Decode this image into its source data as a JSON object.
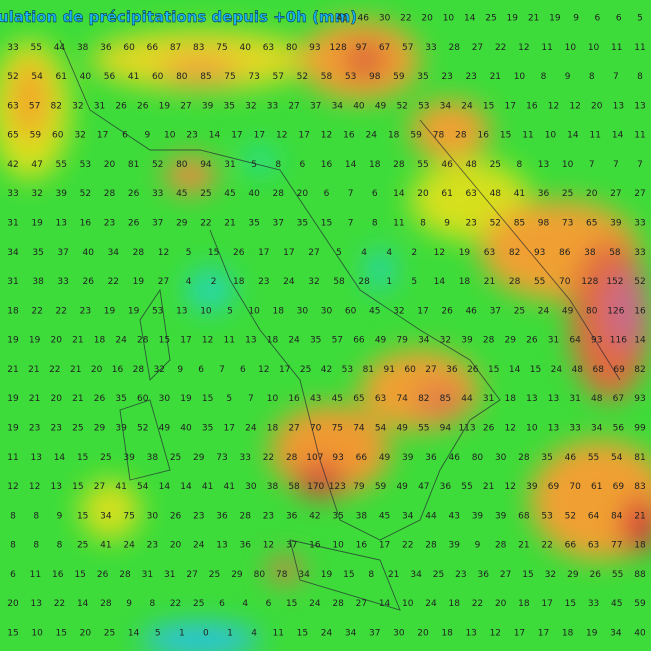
{
  "title": "ulation de précipitations depuis +0h (mm)",
  "grid": [
    [
      41,
      46,
      30,
      22,
      20,
      10,
      14,
      25,
      19,
      21,
      19,
      9,
      6,
      6,
      5
    ],
    [
      33,
      55,
      44,
      38,
      36,
      60,
      66,
      87,
      83,
      75,
      40,
      63,
      80,
      93,
      128,
      97,
      67,
      57,
      33,
      28,
      27,
      22,
      12,
      11,
      10,
      10,
      11,
      11
    ],
    [
      52,
      54,
      61,
      40,
      56,
      41,
      60,
      80,
      85,
      75,
      73,
      57,
      52,
      58,
      53,
      98,
      59,
      35,
      23,
      23,
      21,
      10,
      8,
      9,
      8,
      7,
      8
    ],
    [
      63,
      57,
      82,
      32,
      31,
      26,
      26,
      19,
      27,
      39,
      35,
      32,
      33,
      27,
      37,
      34,
      40,
      49,
      52,
      53,
      34,
      24,
      15,
      17,
      16,
      12,
      12,
      20,
      13,
      13
    ],
    [
      65,
      59,
      60,
      32,
      17,
      6,
      9,
      10,
      23,
      14,
      17,
      17,
      12,
      17,
      12,
      16,
      24,
      18,
      59,
      78,
      28,
      16,
      15,
      11,
      10,
      14,
      11,
      14,
      11
    ],
    [
      42,
      47,
      55,
      53,
      20,
      81,
      52,
      80,
      94,
      31,
      5,
      8,
      6,
      16,
      14,
      18,
      28,
      55,
      46,
      48,
      25,
      8,
      13,
      10,
      7,
      7,
      7
    ],
    [
      33,
      32,
      39,
      52,
      28,
      26,
      33,
      45,
      25,
      45,
      40,
      28,
      20,
      6,
      7,
      6,
      14,
      20,
      61,
      63,
      48,
      41,
      36,
      25,
      20,
      27,
      27
    ],
    [
      31,
      19,
      13,
      16,
      23,
      26,
      37,
      29,
      22,
      21,
      35,
      37,
      35,
      15,
      7,
      8,
      11,
      8,
      9,
      23,
      52,
      85,
      98,
      73,
      65,
      39,
      33
    ],
    [
      34,
      35,
      37,
      40,
      34,
      28,
      12,
      5,
      15,
      26,
      17,
      17,
      27,
      5,
      4,
      4,
      2,
      12,
      19,
      63,
      82,
      93,
      86,
      38,
      58,
      33
    ],
    [
      31,
      38,
      33,
      26,
      22,
      19,
      27,
      4,
      2,
      18,
      23,
      24,
      32,
      58,
      28,
      1,
      5,
      14,
      18,
      21,
      28,
      55,
      70,
      128,
      152,
      52
    ],
    [
      18,
      22,
      22,
      23,
      19,
      19,
      53,
      13,
      10,
      5,
      10,
      18,
      30,
      30,
      60,
      45,
      32,
      17,
      26,
      46,
      37,
      25,
      24,
      49,
      80,
      126,
      16
    ],
    [
      19,
      19,
      20,
      21,
      18,
      24,
      28,
      15,
      17,
      12,
      11,
      13,
      18,
      24,
      35,
      57,
      66,
      49,
      79,
      34,
      32,
      39,
      28,
      29,
      26,
      31,
      64,
      93,
      116,
      14
    ],
    [
      21,
      21,
      22,
      21,
      20,
      16,
      28,
      32,
      9,
      6,
      7,
      6,
      12,
      17,
      25,
      42,
      53,
      81,
      91,
      60,
      27,
      36,
      26,
      15,
      14,
      15,
      24,
      48,
      68,
      69,
      82
    ],
    [
      19,
      21,
      20,
      21,
      26,
      35,
      60,
      30,
      19,
      15,
      5,
      7,
      10,
      16,
      43,
      45,
      65,
      63,
      74,
      82,
      85,
      44,
      31,
      18,
      13,
      13,
      31,
      48,
      67,
      93
    ],
    [
      19,
      23,
      23,
      25,
      29,
      39,
      52,
      49,
      40,
      35,
      17,
      24,
      18,
      27,
      70,
      75,
      74,
      54,
      49,
      55,
      94,
      113,
      26,
      12,
      10,
      13,
      33,
      34,
      56,
      99
    ],
    [
      11,
      13,
      14,
      15,
      25,
      39,
      38,
      25,
      29,
      73,
      33,
      22,
      28,
      107,
      93,
      66,
      49,
      39,
      36,
      46,
      80,
      30,
      28,
      35,
      46,
      55,
      54,
      81
    ],
    [
      12,
      12,
      13,
      15,
      27,
      41,
      54,
      14,
      14,
      41,
      41,
      30,
      38,
      58,
      170,
      123,
      79,
      59,
      49,
      47,
      36,
      55,
      21,
      12,
      39,
      69,
      70,
      61,
      69,
      83
    ],
    [
      8,
      8,
      9,
      15,
      34,
      75,
      30,
      26,
      23,
      36,
      28,
      23,
      36,
      42,
      35,
      38,
      45,
      34,
      44,
      43,
      39,
      39,
      68,
      53,
      52,
      64,
      84,
      21
    ],
    [
      8,
      8,
      8,
      25,
      41,
      24,
      23,
      20,
      24,
      13,
      36,
      12,
      37,
      16,
      10,
      16,
      17,
      22,
      28,
      39,
      9,
      28,
      21,
      22,
      66,
      63,
      77,
      18
    ],
    [
      6,
      11,
      16,
      15,
      26,
      28,
      31,
      31,
      27,
      25,
      29,
      80,
      78,
      34,
      19,
      15,
      8,
      21,
      34,
      25,
      23,
      36,
      27,
      15,
      32,
      29,
      26,
      55,
      88
    ],
    [
      20,
      13,
      22,
      14,
      28,
      9,
      8,
      22,
      25,
      6,
      4,
      6,
      15,
      24,
      28,
      27,
      14,
      10,
      24,
      18,
      22,
      20,
      18,
      17,
      15,
      33,
      45,
      59
    ],
    [
      15,
      10,
      15,
      20,
      25,
      14,
      5,
      1,
      0,
      1,
      4,
      11,
      15,
      24,
      34,
      37,
      30,
      20,
      18,
      13,
      12,
      17,
      17,
      18,
      19,
      34,
      40
    ]
  ]
}
